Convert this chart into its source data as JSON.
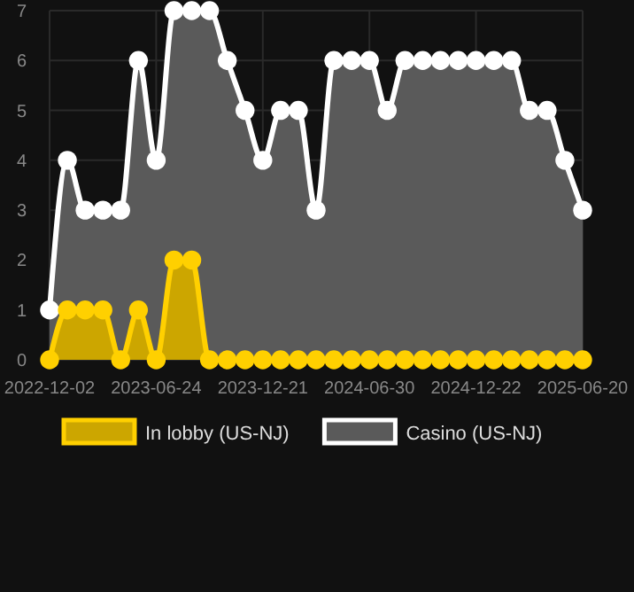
{
  "chart_data": {
    "type": "area",
    "categories": [
      "2022-12-02",
      null,
      null,
      null,
      null,
      null,
      "2023-06-24",
      null,
      null,
      null,
      null,
      null,
      "2023-12-21",
      null,
      null,
      null,
      null,
      null,
      "2024-06-30",
      null,
      null,
      null,
      null,
      null,
      "2024-12-22",
      null,
      null,
      null,
      null,
      null,
      "2025-06-20"
    ],
    "series": [
      {
        "name": "Casino (US-NJ)",
        "color": "#ffffff",
        "values": [
          1,
          4,
          3,
          3,
          3,
          6,
          4,
          7,
          7,
          7,
          6,
          5,
          4,
          5,
          5,
          3,
          6,
          6,
          6,
          5,
          6,
          6,
          6,
          6,
          6,
          6,
          6,
          5,
          5,
          4,
          3
        ]
      },
      {
        "name": "In lobby (US-NJ)",
        "color": "#ffd000",
        "values": [
          0,
          1,
          1,
          1,
          0,
          1,
          0,
          2,
          2,
          0,
          0,
          0,
          0,
          0,
          0,
          0,
          0,
          0,
          0,
          0,
          0,
          0,
          0,
          0,
          0,
          0,
          0,
          0,
          0,
          0,
          0
        ]
      }
    ],
    "ylim": [
      0,
      7
    ],
    "yticks": [
      0,
      1,
      2,
      3,
      4,
      5,
      6,
      7
    ],
    "grid": true,
    "legend": "bottom",
    "marker": "circle",
    "line_style": "solid"
  }
}
